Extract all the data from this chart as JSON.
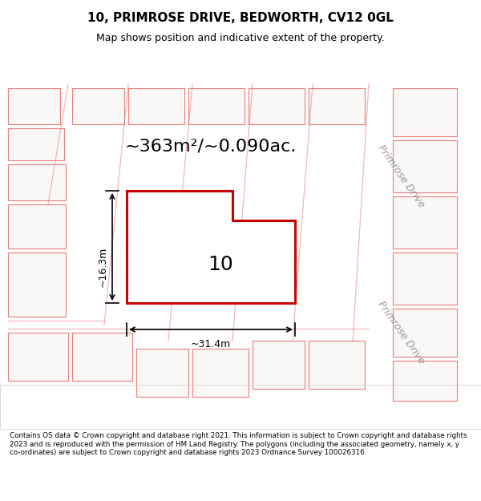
{
  "title_line1": "10, PRIMROSE DRIVE, BEDWORTH, CV12 0GL",
  "title_line2": "Map shows position and indicative extent of the property.",
  "area_text": "~363m²/~0.090ac.",
  "label_number": "10",
  "dim_width": "~31.4m",
  "dim_height": "~16.3m",
  "road_label": "Primrose Drive",
  "footer_text": "Contains OS data © Crown copyright and database right 2021. This information is subject to Crown copyright and database rights 2023 and is reproduced with the permission of HM Land Registry. The polygons (including the associated geometry, namely x, y co-ordinates) are subject to Crown copyright and database rights 2023 Ordnance Survey 100026316.",
  "bg_color": "#f0ece8",
  "map_bg": "#f5f2ef",
  "plot_color_fill": "#ffffff",
  "plot_color_edge": "#cc0000",
  "road_line_color": "#e87070",
  "header_bg": "#ffffff",
  "footer_bg": "#ffffff"
}
